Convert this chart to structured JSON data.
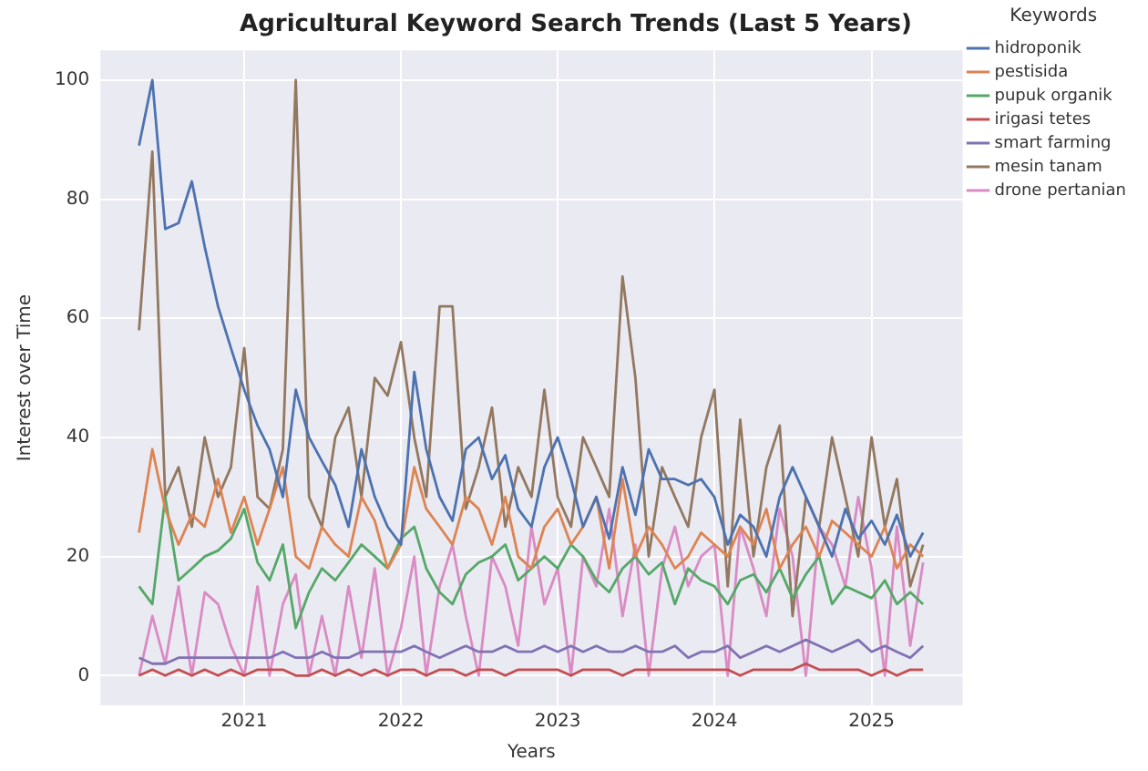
{
  "chart_data": {
    "type": "line",
    "title": "Agricultural Keyword Search Trends (Last 5 Years)",
    "xlabel": "Years",
    "ylabel": "Interest over Time",
    "legend_title": "Keywords",
    "legend": "top right",
    "grid": true,
    "marker": "none",
    "line_style": "solid",
    "x": [
      "2020-05",
      "2020-06",
      "2020-07",
      "2020-08",
      "2020-09",
      "2020-10",
      "2020-11",
      "2020-12",
      "2021-01",
      "2021-02",
      "2021-03",
      "2021-04",
      "2021-05",
      "2021-06",
      "2021-07",
      "2021-08",
      "2021-09",
      "2021-10",
      "2021-11",
      "2021-12",
      "2022-01",
      "2022-02",
      "2022-03",
      "2022-04",
      "2022-05",
      "2022-06",
      "2022-07",
      "2022-08",
      "2022-09",
      "2022-10",
      "2022-11",
      "2022-12",
      "2023-01",
      "2023-02",
      "2023-03",
      "2023-04",
      "2023-05",
      "2023-06",
      "2023-07",
      "2023-08",
      "2023-09",
      "2023-10",
      "2023-11",
      "2023-12",
      "2024-01",
      "2024-02",
      "2024-03",
      "2024-04",
      "2024-05",
      "2024-06",
      "2024-07",
      "2024-08",
      "2024-09",
      "2024-10",
      "2024-11",
      "2024-12",
      "2025-01",
      "2025-02",
      "2025-03",
      "2025-04",
      "2025-05"
    ],
    "xlim": [
      "2020-02",
      "2025-08"
    ],
    "xticks": [
      "2021",
      "2022",
      "2023",
      "2024",
      "2025"
    ],
    "ylim": [
      -5,
      105
    ],
    "yticks": [
      0,
      20,
      40,
      60,
      80,
      100
    ],
    "series": [
      {
        "name": "hidroponik",
        "color": "#4c72b0",
        "values": [
          89,
          100,
          75,
          76,
          83,
          72,
          62,
          55,
          48,
          42,
          38,
          30,
          48,
          40,
          36,
          32,
          25,
          38,
          30,
          25,
          22,
          51,
          38,
          30,
          26,
          38,
          40,
          33,
          37,
          28,
          25,
          35,
          40,
          33,
          25,
          30,
          23,
          35,
          27,
          38,
          33,
          33,
          32,
          33,
          30,
          22,
          27,
          25,
          20,
          30,
          35,
          30,
          25,
          20,
          28,
          23,
          26,
          22,
          27,
          20,
          24
        ]
      },
      {
        "name": "pestisida",
        "color": "#dd8452",
        "values": [
          24,
          38,
          28,
          22,
          27,
          25,
          33,
          24,
          30,
          22,
          28,
          35,
          20,
          18,
          25,
          22,
          20,
          30,
          26,
          18,
          22,
          35,
          28,
          25,
          22,
          30,
          28,
          22,
          30,
          20,
          18,
          25,
          28,
          22,
          25,
          30,
          18,
          33,
          20,
          25,
          22,
          18,
          20,
          24,
          22,
          20,
          25,
          22,
          28,
          18,
          22,
          25,
          20,
          26,
          24,
          22,
          20,
          25,
          18,
          22,
          20
        ]
      },
      {
        "name": "pupuk organik",
        "color": "#55a868",
        "values": [
          15,
          12,
          30,
          16,
          18,
          20,
          21,
          23,
          28,
          19,
          16,
          22,
          8,
          14,
          18,
          16,
          19,
          22,
          20,
          18,
          23,
          25,
          18,
          14,
          12,
          17,
          19,
          20,
          22,
          16,
          18,
          20,
          18,
          22,
          20,
          16,
          14,
          18,
          20,
          17,
          19,
          12,
          18,
          16,
          15,
          12,
          16,
          17,
          14,
          18,
          13,
          17,
          20,
          12,
          15,
          14,
          13,
          16,
          12,
          14,
          12
        ]
      },
      {
        "name": "irigasi tetes",
        "color": "#c44e52",
        "values": [
          0,
          1,
          0,
          1,
          0,
          1,
          0,
          1,
          0,
          1,
          1,
          1,
          0,
          0,
          1,
          0,
          1,
          0,
          1,
          0,
          1,
          1,
          0,
          1,
          1,
          0,
          1,
          1,
          0,
          1,
          1,
          1,
          1,
          0,
          1,
          1,
          1,
          0,
          1,
          1,
          1,
          1,
          1,
          1,
          1,
          1,
          0,
          1,
          1,
          1,
          1,
          2,
          1,
          1,
          1,
          1,
          0,
          1,
          0,
          1,
          1
        ]
      },
      {
        "name": "smart farming",
        "color": "#8172b3",
        "values": [
          3,
          2,
          2,
          3,
          3,
          3,
          3,
          3,
          3,
          3,
          3,
          4,
          3,
          3,
          4,
          3,
          3,
          4,
          4,
          4,
          4,
          5,
          4,
          3,
          4,
          5,
          4,
          4,
          5,
          4,
          4,
          5,
          4,
          5,
          4,
          5,
          4,
          4,
          5,
          4,
          4,
          5,
          3,
          4,
          4,
          5,
          3,
          4,
          5,
          4,
          5,
          6,
          5,
          4,
          5,
          6,
          4,
          5,
          4,
          3,
          5
        ]
      },
      {
        "name": "mesin tanam",
        "color": "#937860",
        "values": [
          58,
          88,
          30,
          35,
          25,
          40,
          30,
          35,
          55,
          30,
          28,
          38,
          100,
          30,
          25,
          40,
          45,
          30,
          50,
          47,
          56,
          40,
          30,
          62,
          62,
          28,
          35,
          45,
          25,
          35,
          30,
          48,
          30,
          25,
          40,
          35,
          30,
          67,
          50,
          20,
          35,
          30,
          25,
          40,
          48,
          15,
          43,
          20,
          35,
          42,
          10,
          30,
          25,
          40,
          30,
          20,
          40,
          25,
          33,
          15,
          22
        ]
      },
      {
        "name": "drone pertanian",
        "color": "#da8bc3",
        "values": [
          0,
          10,
          2,
          15,
          0,
          14,
          12,
          5,
          0,
          15,
          0,
          12,
          17,
          0,
          10,
          0,
          15,
          3,
          18,
          0,
          8,
          20,
          0,
          15,
          22,
          10,
          0,
          20,
          15,
          5,
          25,
          12,
          18,
          0,
          20,
          15,
          28,
          10,
          22,
          0,
          18,
          25,
          15,
          20,
          22,
          0,
          25,
          18,
          10,
          28,
          20,
          0,
          25,
          22,
          15,
          30,
          18,
          0,
          25,
          5,
          19
        ]
      }
    ]
  }
}
